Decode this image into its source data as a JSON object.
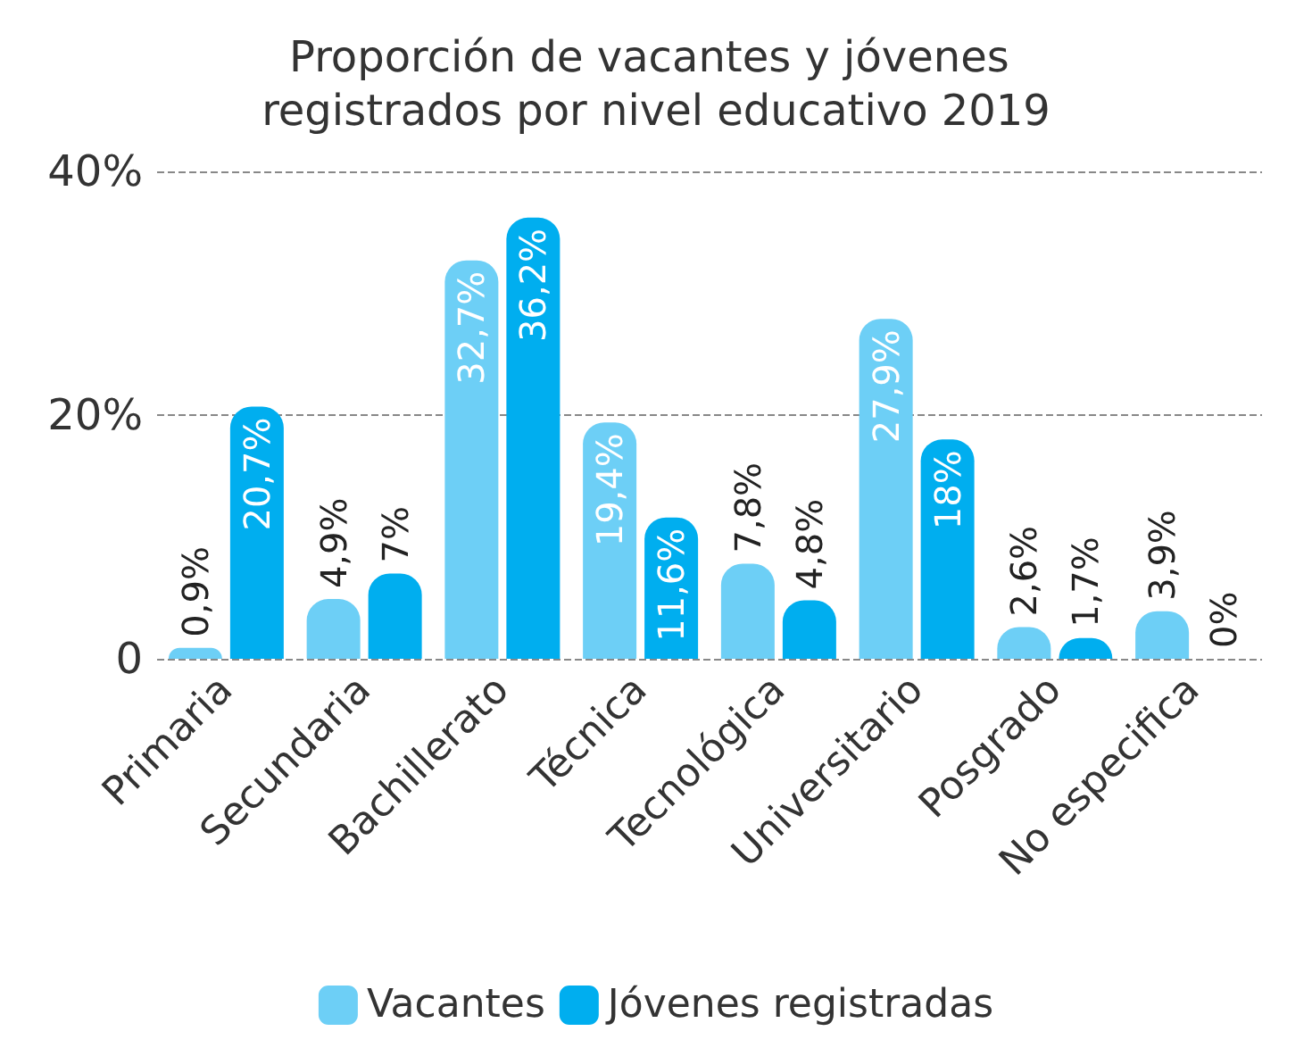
{
  "chart_data": {
    "type": "bar",
    "title": "Proporción de vacantes y jóvenes registrados por nivel educativo 2019",
    "categories": [
      "Primaria",
      "Secundaria",
      "Bachillerato",
      "Técnica",
      "Tecnológica",
      "Universitario",
      "Posgrado",
      "No especifica"
    ],
    "series": [
      {
        "name": "Vacantes",
        "color": "#6dcff6",
        "values": [
          0.9,
          4.9,
          32.7,
          19.4,
          7.8,
          27.9,
          2.6,
          3.9
        ],
        "value_labels": [
          "0,9%",
          "4,9%",
          "32,7%",
          "19,4%",
          "7,8%",
          "27,9%",
          "2,6%",
          "3,9%"
        ]
      },
      {
        "name": "Jóvenes registradas",
        "color": "#00aeef",
        "values": [
          20.7,
          7,
          36.2,
          11.6,
          4.8,
          18,
          1.7,
          0
        ],
        "value_labels": [
          "20,7%",
          "7%",
          "36,2%",
          "11,6%",
          "4,8%",
          "18%",
          "1,7%",
          "0%"
        ]
      }
    ],
    "ylim": [
      0,
      40
    ],
    "yticks": [
      {
        "value": 0,
        "label": "0"
      },
      {
        "value": 20,
        "label": "20%"
      },
      {
        "value": 40,
        "label": "40%"
      }
    ],
    "grid": "y",
    "legend": "bottom"
  }
}
